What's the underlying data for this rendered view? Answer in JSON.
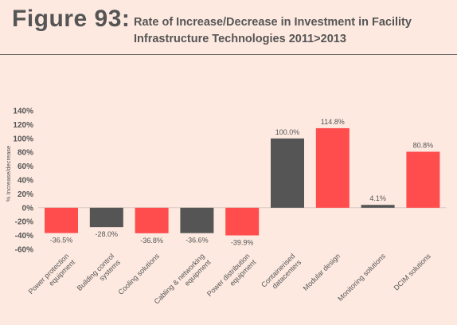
{
  "figure": {
    "label": "Figure 93:",
    "title_line1": "Rate of Increase/Decrease in Investment in Facility",
    "title_line2": "Infrastructure Technologies 2011>2013"
  },
  "chart_data": {
    "type": "bar",
    "title": "Rate of Increase/Decrease in Investment in Facility Infrastructure Technologies 2011>2013",
    "ylabel": "% Increase/decrease",
    "xlabel": "",
    "ylim": [
      -60,
      140
    ],
    "yticks": [
      140,
      120,
      100,
      80,
      60,
      40,
      20,
      0,
      -20,
      -40,
      -60
    ],
    "ytick_labels": [
      "140%",
      "120%",
      "100%",
      "80%",
      "60%",
      "40%",
      "20%",
      "0%",
      "-20%",
      "-40%",
      "-60%"
    ],
    "grid": false,
    "categories": [
      [
        "Power protection",
        "equipment"
      ],
      [
        "Building control",
        "systems"
      ],
      [
        "Cooling solutions"
      ],
      [
        "Cabling & networking",
        "equipment"
      ],
      [
        "Power distribution",
        "equipment"
      ],
      [
        "Containerised",
        "datacenters"
      ],
      [
        "Modular design"
      ],
      [
        "Monitoring solutions"
      ],
      [
        "DCIM solutions"
      ]
    ],
    "values": [
      -36.5,
      -28.0,
      -36.8,
      -36.6,
      -39.9,
      100.0,
      114.8,
      4.1,
      80.8
    ],
    "value_labels": [
      "-36.5%",
      "-28.0%",
      "-36.8%",
      "-36.6%",
      "-39.9%",
      "100.0%",
      "114.8%",
      "4.1%",
      "80.8%"
    ],
    "bar_colors": [
      "#ff4c4c",
      "#555555",
      "#ff4c4c",
      "#555555",
      "#ff4c4c",
      "#555555",
      "#ff4c4c",
      "#555555",
      "#ff4c4c"
    ],
    "colors": {
      "accent_red": "#ff4c4c",
      "dark_gray": "#555555",
      "background": "#fde9e0",
      "text": "#555555"
    }
  }
}
